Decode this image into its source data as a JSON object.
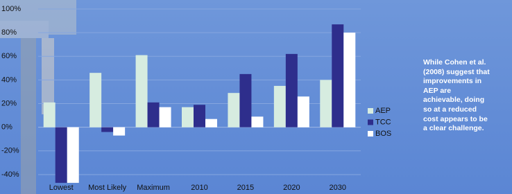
{
  "chart_data": {
    "type": "bar",
    "categories": [
      "Lowest",
      "Most Likely",
      "Maximum",
      "2010",
      "2015",
      "2020",
      "2030"
    ],
    "series": [
      {
        "name": "AEP",
        "color": "#d6ece0",
        "values": [
          21,
          46,
          61,
          17,
          29,
          35,
          40
        ]
      },
      {
        "name": "TCC",
        "color": "#2e2e8c",
        "values": [
          -47,
          -4,
          21,
          19,
          45,
          62,
          87
        ]
      },
      {
        "name": "BOS",
        "color": "#ffffff",
        "values": [
          -47,
          -7,
          17,
          7,
          9,
          26,
          80
        ]
      }
    ],
    "ylim": [
      -48,
      100
    ],
    "yticks": [
      {
        "value": -40,
        "label": "-40%"
      },
      {
        "value": -20,
        "label": "-20%"
      },
      {
        "value": 0,
        "label": "0%"
      },
      {
        "value": 20,
        "label": "20%"
      },
      {
        "value": 40,
        "label": "40%"
      },
      {
        "value": 60,
        "label": "60%"
      },
      {
        "value": 80,
        "label": "80%"
      },
      {
        "value": 100,
        "label": "100%"
      }
    ],
    "grid": true,
    "legend": "right",
    "annotation_lines": [
      "While Cohen et al.",
      "(2008) suggest that",
      "improvements in",
      "AEP are",
      "achievable, doing",
      "so at a reduced",
      "cost appears to be",
      "a clear challenge."
    ]
  }
}
